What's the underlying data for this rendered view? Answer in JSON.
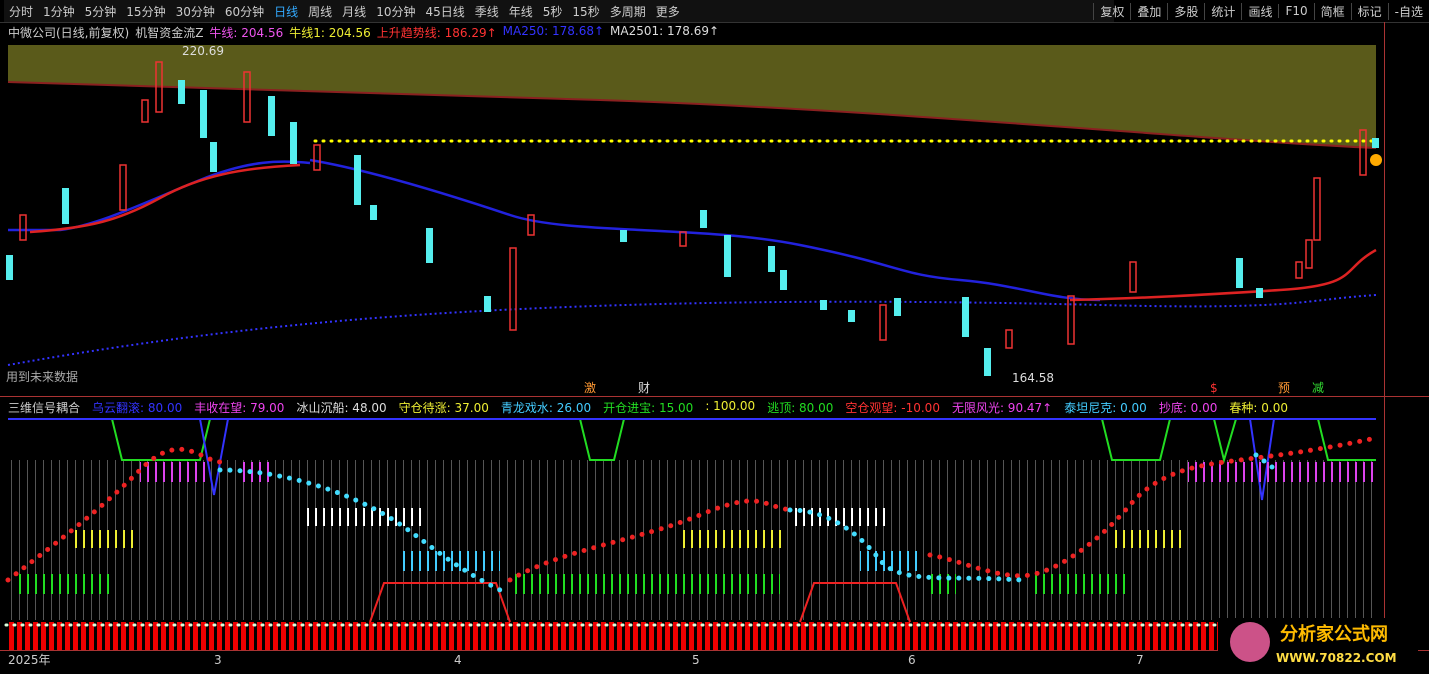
{
  "toolbar": {
    "left": [
      "分时",
      "1分钟",
      "5分钟",
      "15分钟",
      "30分钟",
      "60分钟",
      "日线",
      "周线",
      "月线",
      "10分钟",
      "45日线",
      "季线",
      "年线",
      "5秒",
      "15秒",
      "多周期",
      "更多"
    ],
    "right": [
      "复权",
      "叠加",
      "多股",
      "统计",
      "画线",
      "F10",
      "简框",
      "标记",
      "-自选"
    ]
  },
  "main_panel": {
    "stock": "中微公司(日线,前复权)",
    "indicator": "机智资金流Z",
    "items": [
      "牛线: 204.56",
      "牛线1: 204.56",
      "上升趋势线: 186.29↑",
      "MA250: 178.68↑",
      "MA2501: 178.69↑"
    ],
    "high_label": "220.69",
    "low_label": "164.58",
    "note": "用到未来数据",
    "markers": [
      "激",
      "财",
      "$",
      "预",
      "减"
    ]
  },
  "lower_panel": {
    "title": "三维信号耦合",
    "items": [
      "乌云翻滚: 80.00",
      "丰收在望: 79.00",
      "冰山沉船: 48.00",
      "守仓待涨: 37.00",
      "青龙戏水: 26.00",
      "开仓进宝: 15.00",
      ": 100.00",
      "逃顶: 80.00",
      "空仓观望: -10.00",
      "无限风光: 90.47↑",
      "泰坦尼克: 0.00",
      "抄底: 0.00",
      "春种: 0.00"
    ]
  },
  "x_axis": [
    "2025年",
    "3",
    "4",
    "5",
    "6",
    "7"
  ],
  "watermark": {
    "name": "分析家公式网",
    "url": "WWW.70822.COM"
  }
}
